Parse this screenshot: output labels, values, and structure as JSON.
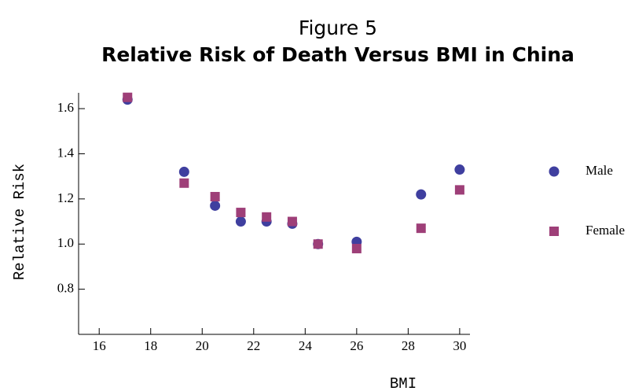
{
  "chart_data": {
    "type": "scatter",
    "supertitle": "Figure 5",
    "title": "Relative Risk of Death Versus BMI in China",
    "x_label": "BMI",
    "y_label": "Relative Risk",
    "x": [
      17.1,
      19.3,
      20.5,
      21.5,
      22.5,
      23.5,
      24.5,
      26.0,
      28.5,
      30.0
    ],
    "series": [
      {
        "name": "Male",
        "color": "#3f3f9f",
        "marker": "circle",
        "values": [
          1.64,
          1.32,
          1.17,
          1.1,
          1.1,
          1.09,
          1.0,
          1.01,
          1.22,
          1.33
        ]
      },
      {
        "name": "Female",
        "color": "#9e3f78",
        "marker": "square",
        "values": [
          1.65,
          1.27,
          1.21,
          1.14,
          1.12,
          1.1,
          1.0,
          0.98,
          1.07,
          1.24
        ]
      }
    ],
    "xlim": [
      15.2,
      30.4
    ],
    "ylim": [
      0.6,
      1.67
    ],
    "xticks": [
      16,
      18,
      20,
      22,
      24,
      26,
      28,
      30
    ],
    "yticks": [
      0.8,
      {
        "value": 1.0,
        "label": "1.0"
      },
      1.2,
      1.4,
      1.6
    ],
    "legend": "right"
  }
}
